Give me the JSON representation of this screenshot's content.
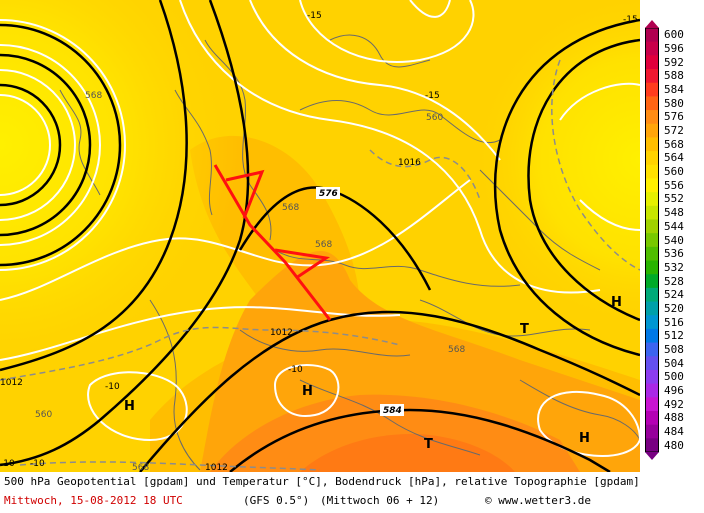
{
  "legend": {
    "values": [
      "600",
      "596",
      "592",
      "588",
      "584",
      "580",
      "576",
      "572",
      "568",
      "564",
      "560",
      "556",
      "552",
      "548",
      "544",
      "540",
      "536",
      "532",
      "528",
      "524",
      "520",
      "516",
      "512",
      "508",
      "504",
      "500",
      "496",
      "492",
      "488",
      "484",
      "480"
    ],
    "colors": [
      "#b00050",
      "#c8004a",
      "#e0003c",
      "#f01830",
      "#ff3c1e",
      "#ff6414",
      "#ff8c14",
      "#ffa50a",
      "#ffbe00",
      "#ffd200",
      "#ffe100",
      "#fff000",
      "#e6f000",
      "#c8e600",
      "#a0d200",
      "#78c800",
      "#50be00",
      "#28b400",
      "#00aa28",
      "#00aa78",
      "#00a0aa",
      "#0096d2",
      "#0078e6",
      "#3c64f0",
      "#6450f0",
      "#8c3cf0",
      "#aa28e6",
      "#c814d2",
      "#b400b4",
      "#96009b",
      "#780082"
    ]
  },
  "map_labels": {
    "geopotential": [
      "576",
      "584"
    ],
    "temperature": [
      "-15",
      "-15",
      "-15",
      "-10",
      "-10",
      "-10",
      "-10"
    ],
    "pressure": [
      "1016",
      "1012",
      "1012",
      "1012"
    ],
    "topography": [
      "568",
      "568",
      "560",
      "568",
      "560",
      "568",
      "568"
    ],
    "highs": [
      "H",
      "H",
      "H",
      "H"
    ],
    "lows": [
      "T",
      "T"
    ]
  },
  "footer": {
    "title": "500 hPa Geopotential [gpdam] und Temperatur [°C], Bodendruck [hPa], relative Topographie [gpdam]",
    "date": "Mittwoch, 15-08-2012  18 UTC",
    "model": "(GFS 0.5°)",
    "run": "(Mittwoch 06 + 12)",
    "copyright": "© www.wetter3.de"
  }
}
